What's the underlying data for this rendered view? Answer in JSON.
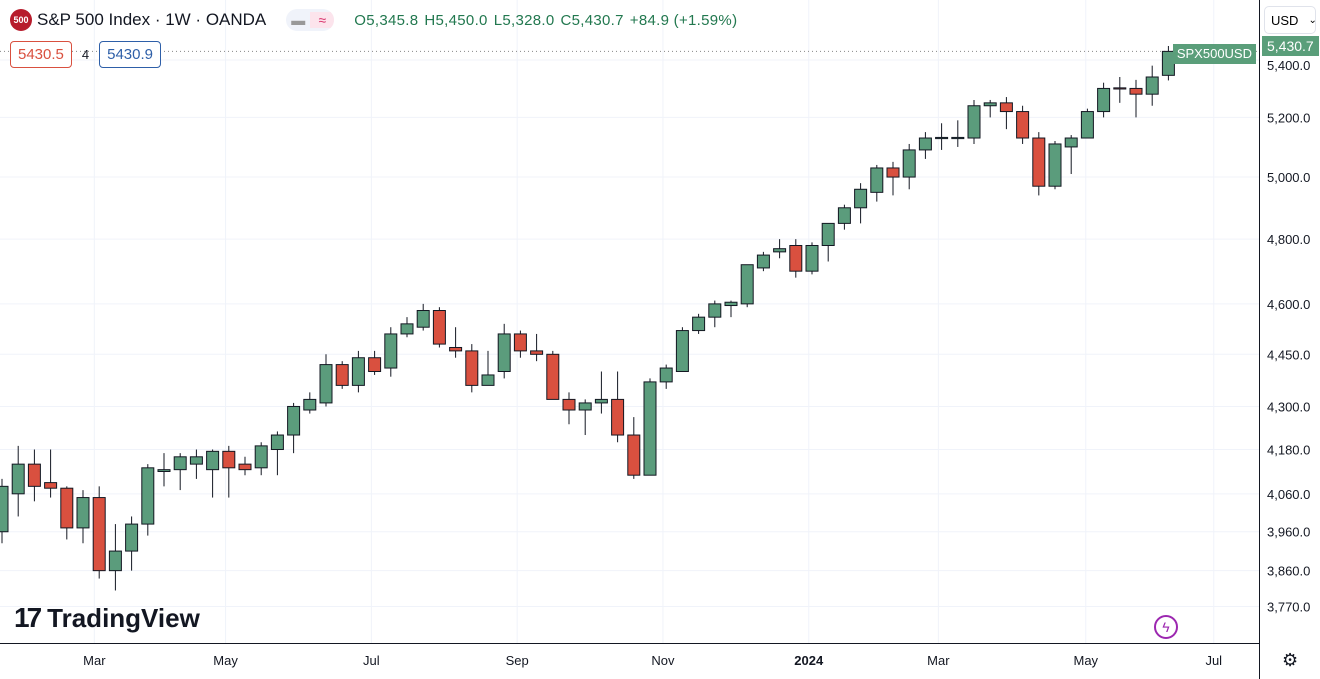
{
  "header": {
    "logo_text": "500",
    "title": "S&P 500 Index · 1W · OANDA",
    "open": "O5,345.8",
    "high": "H5,450.0",
    "low": "L5,328.0",
    "close": "C5,430.7",
    "change": "+84.9 (+1.59%)",
    "bid": "5430.5",
    "spread": "4",
    "ask": "5430.9"
  },
  "currency": "USD",
  "symbol_tag": "SPX500USD",
  "last_price": "5,430.7",
  "brand": "TradingView",
  "colors": {
    "up": "#5b9c7c",
    "down": "#d9503f",
    "up_tag": "#5a9e7a"
  },
  "price_ticks": [
    "5,400.0",
    "5,200.0",
    "5,000.0",
    "4,800.0",
    "4,600.0",
    "4,450.0",
    "4,300.0",
    "4,180.0",
    "4,060.0",
    "3,960.0",
    "3,860.0",
    "3,770.0"
  ],
  "time_labels": [
    {
      "t": "Mar",
      "i": 5.7
    },
    {
      "t": "May",
      "i": 13.8
    },
    {
      "t": "Jul",
      "i": 22.8
    },
    {
      "t": "Sep",
      "i": 31.8
    },
    {
      "t": "Nov",
      "i": 40.8
    },
    {
      "t": "2024",
      "i": 49.8,
      "bold": true
    },
    {
      "t": "Mar",
      "i": 57.8
    },
    {
      "t": "May",
      "i": 66.9
    },
    {
      "t": "Jul",
      "i": 74.8
    }
  ],
  "chart_data": {
    "type": "candlestick",
    "interval": "1W",
    "ylim": [
      3720,
      5480
    ],
    "ohlc": [
      [
        3960,
        4100,
        3930,
        4080
      ],
      [
        4060,
        4190,
        4000,
        4140
      ],
      [
        4140,
        4180,
        4040,
        4080
      ],
      [
        4090,
        4180,
        4050,
        4075
      ],
      [
        4075,
        4080,
        3940,
        3970
      ],
      [
        3970,
        4070,
        3930,
        4050
      ],
      [
        4050,
        4080,
        3840,
        3860
      ],
      [
        3860,
        3980,
        3810,
        3910
      ],
      [
        3910,
        4000,
        3860,
        3980
      ],
      [
        3980,
        4140,
        3950,
        4130
      ],
      [
        4120,
        4170,
        4080,
        4125
      ],
      [
        4125,
        4170,
        4070,
        4160
      ],
      [
        4140,
        4180,
        4100,
        4160
      ],
      [
        4125,
        4180,
        4050,
        4175
      ],
      [
        4175,
        4190,
        4050,
        4130
      ],
      [
        4140,
        4160,
        4110,
        4125
      ],
      [
        4130,
        4200,
        4110,
        4190
      ],
      [
        4180,
        4230,
        4110,
        4220
      ],
      [
        4220,
        4310,
        4170,
        4300
      ],
      [
        4290,
        4340,
        4280,
        4320
      ],
      [
        4310,
        4450,
        4300,
        4420
      ],
      [
        4420,
        4430,
        4350,
        4360
      ],
      [
        4360,
        4460,
        4340,
        4440
      ],
      [
        4440,
        4460,
        4390,
        4400
      ],
      [
        4410,
        4530,
        4385,
        4510
      ],
      [
        4510,
        4560,
        4500,
        4540
      ],
      [
        4530,
        4600,
        4520,
        4580
      ],
      [
        4580,
        4590,
        4470,
        4480
      ],
      [
        4470,
        4530,
        4440,
        4460
      ],
      [
        4460,
        4480,
        4340,
        4360
      ],
      [
        4360,
        4460,
        4360,
        4390
      ],
      [
        4400,
        4540,
        4380,
        4510
      ],
      [
        4510,
        4520,
        4440,
        4460
      ],
      [
        4460,
        4510,
        4430,
        4450
      ],
      [
        4450,
        4460,
        4320,
        4320
      ],
      [
        4320,
        4340,
        4250,
        4290
      ],
      [
        4290,
        4320,
        4220,
        4310
      ],
      [
        4310,
        4400,
        4280,
        4320
      ],
      [
        4320,
        4400,
        4200,
        4220
      ],
      [
        4220,
        4270,
        4100,
        4110
      ],
      [
        4110,
        4380,
        4110,
        4370
      ],
      [
        4370,
        4420,
        4350,
        4410
      ],
      [
        4400,
        4530,
        4400,
        4520
      ],
      [
        4520,
        4570,
        4510,
        4560
      ],
      [
        4560,
        4610,
        4530,
        4600
      ],
      [
        4595,
        4610,
        4560,
        4605
      ],
      [
        4600,
        4720,
        4590,
        4720
      ],
      [
        4710,
        4760,
        4700,
        4750
      ],
      [
        4760,
        4800,
        4740,
        4770
      ],
      [
        4780,
        4800,
        4680,
        4700
      ],
      [
        4700,
        4790,
        4690,
        4780
      ],
      [
        4780,
        4850,
        4730,
        4850
      ],
      [
        4850,
        4910,
        4830,
        4900
      ],
      [
        4900,
        4980,
        4850,
        4960
      ],
      [
        4950,
        5040,
        4920,
        5030
      ],
      [
        5030,
        5050,
        4940,
        5000
      ],
      [
        5000,
        5110,
        4960,
        5090
      ],
      [
        5090,
        5150,
        5060,
        5130
      ],
      [
        5128,
        5180,
        5090,
        5132
      ],
      [
        5128,
        5190,
        5100,
        5132
      ],
      [
        5130,
        5260,
        5110,
        5240
      ],
      [
        5240,
        5260,
        5200,
        5250
      ],
      [
        5250,
        5270,
        5160,
        5220
      ],
      [
        5220,
        5240,
        5110,
        5130
      ],
      [
        5130,
        5150,
        4940,
        4970
      ],
      [
        4970,
        5120,
        4960,
        5110
      ],
      [
        5100,
        5140,
        5010,
        5130
      ],
      [
        5130,
        5230,
        5130,
        5220
      ],
      [
        5220,
        5320,
        5200,
        5300
      ],
      [
        5302,
        5340,
        5250,
        5298
      ],
      [
        5300,
        5330,
        5200,
        5280
      ],
      [
        5280,
        5380,
        5240,
        5340
      ],
      [
        5345.8,
        5450,
        5328,
        5430.7
      ]
    ]
  }
}
